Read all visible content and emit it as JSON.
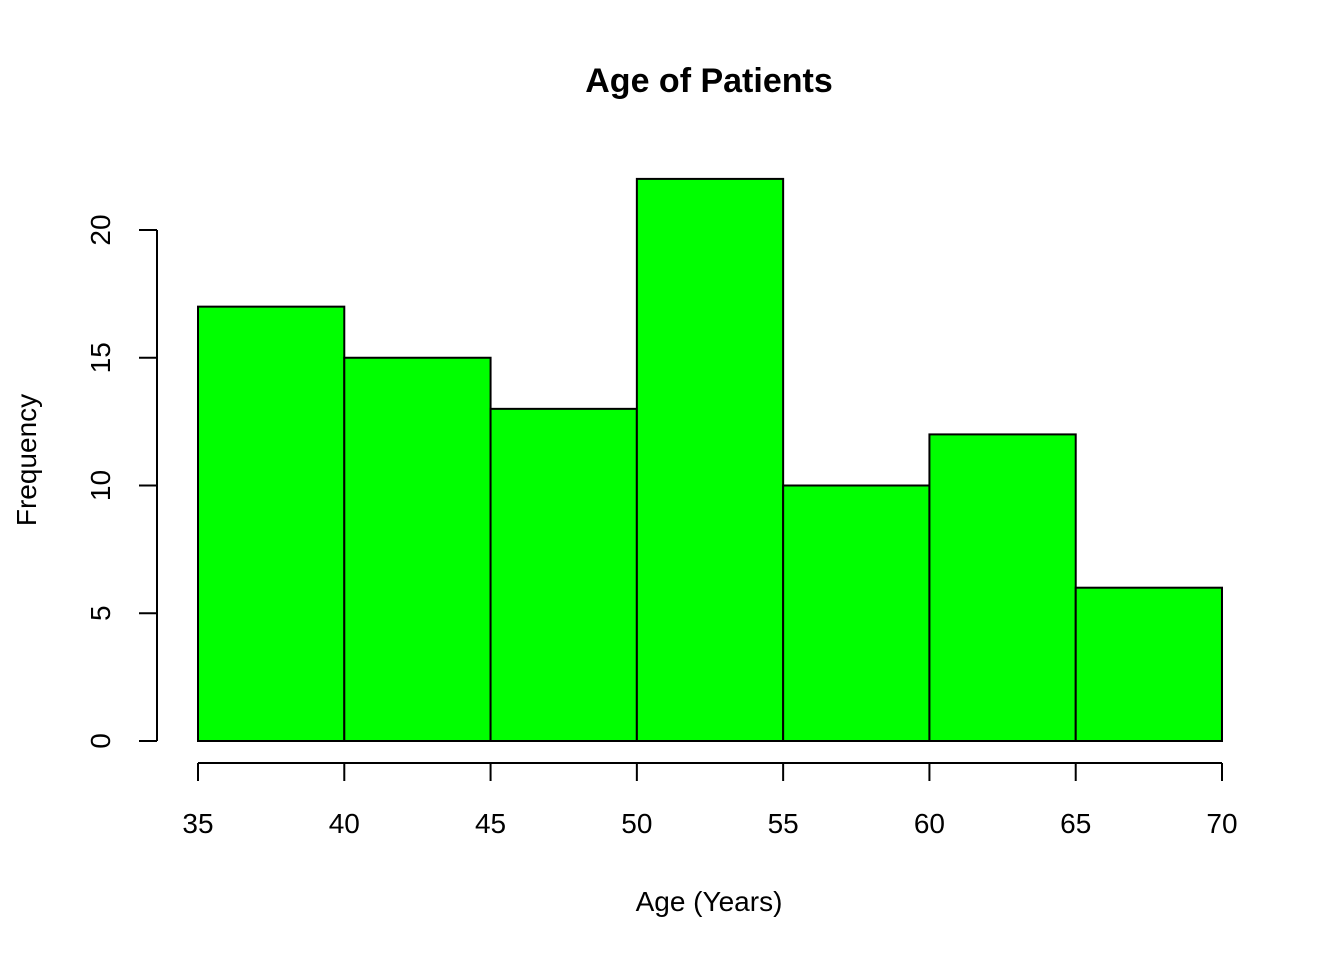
{
  "chart_data": {
    "type": "bar",
    "title": "Age of Patients",
    "xlabel": "Age (Years)",
    "ylabel": "Frequency",
    "bins": [
      {
        "start": 35,
        "end": 40,
        "value": 17
      },
      {
        "start": 40,
        "end": 45,
        "value": 15
      },
      {
        "start": 45,
        "end": 50,
        "value": 13
      },
      {
        "start": 50,
        "end": 55,
        "value": 22
      },
      {
        "start": 55,
        "end": 60,
        "value": 10
      },
      {
        "start": 60,
        "end": 65,
        "value": 12
      },
      {
        "start": 65,
        "end": 70,
        "value": 6
      }
    ],
    "xlim": [
      35,
      70
    ],
    "ylim": [
      0,
      22
    ],
    "x_ticks": [
      35,
      40,
      45,
      50,
      55,
      60,
      65,
      70
    ],
    "y_ticks": [
      0,
      5,
      10,
      15,
      20
    ],
    "bar_color": "#00ff00",
    "grid": false
  }
}
